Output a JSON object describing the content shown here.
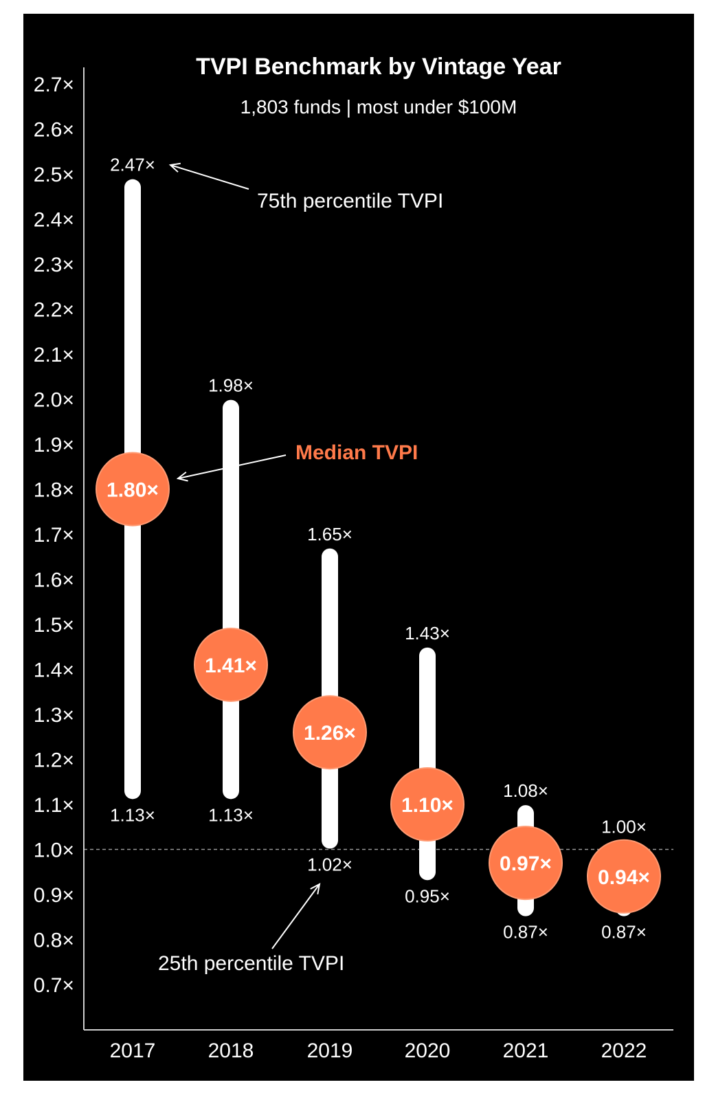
{
  "colors": {
    "background": "#000000",
    "bar": "#ffffff",
    "median_fill": "#ff7a4a",
    "median_stroke": "#ff9a72",
    "reference_line": "#9a9a9a",
    "axis": "#cfcfcf"
  },
  "chart_data": {
    "type": "range-dot",
    "title": "TVPI Benchmark by Vintage Year",
    "subtitle": "1,803 funds | most under $100M",
    "categories": [
      "2017",
      "2018",
      "2019",
      "2020",
      "2021",
      "2022"
    ],
    "series": [
      {
        "name": "75th percentile TVPI",
        "values": [
          2.47,
          1.98,
          1.65,
          1.43,
          1.08,
          1.0
        ],
        "labels": [
          "2.47×",
          "1.98×",
          "1.65×",
          "1.43×",
          "1.08×",
          "1.00×"
        ]
      },
      {
        "name": "Median TVPI",
        "values": [
          1.8,
          1.41,
          1.26,
          1.1,
          0.97,
          0.94
        ],
        "labels": [
          "1.80×",
          "1.41×",
          "1.26×",
          "1.10×",
          "0.97×",
          "0.94×"
        ]
      },
      {
        "name": "25th percentile TVPI",
        "values": [
          1.13,
          1.13,
          1.02,
          0.95,
          0.87,
          0.87
        ],
        "labels": [
          "1.13×",
          "1.13×",
          "1.02×",
          "0.95×",
          "0.87×",
          "0.87×"
        ]
      }
    ],
    "y_ticks": [
      2.7,
      2.6,
      2.5,
      2.4,
      2.3,
      2.2,
      2.1,
      2.0,
      1.9,
      1.8,
      1.7,
      1.6,
      1.5,
      1.4,
      1.3,
      1.2,
      1.1,
      1.0,
      0.9,
      0.8,
      0.7
    ],
    "y_tick_labels": [
      "2.7×",
      "2.6×",
      "2.5×",
      "2.4×",
      "2.3×",
      "2.2×",
      "2.1×",
      "2.0×",
      "1.9×",
      "1.8×",
      "1.7×",
      "1.6×",
      "1.5×",
      "1.4×",
      "1.3×",
      "1.2×",
      "1.1×",
      "1.0×",
      "0.9×",
      "0.8×",
      "0.7×"
    ],
    "ylim": [
      0.6,
      2.75
    ],
    "reference_line": 1.0,
    "grid": false,
    "annotations": {
      "top": "75th percentile TVPI",
      "median": "Median TVPI",
      "bottom": "25th percentile TVPI"
    }
  }
}
